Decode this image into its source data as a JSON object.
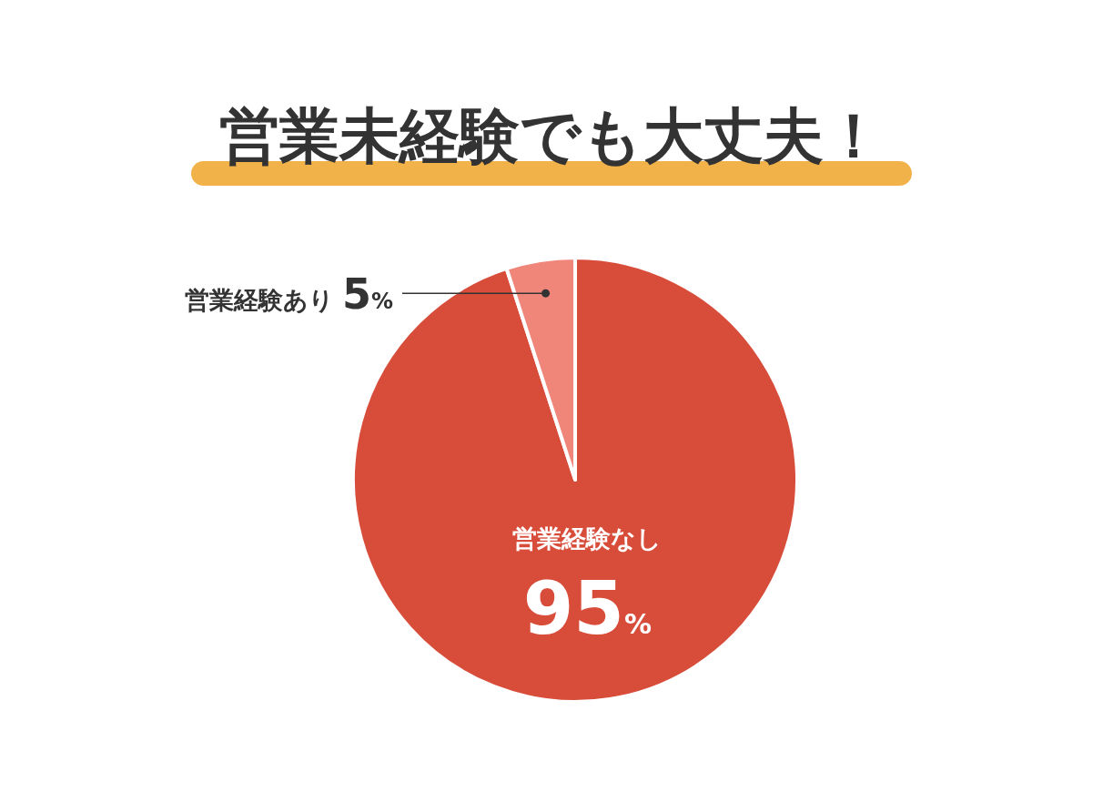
{
  "chart_data": {
    "type": "pie",
    "title": "営業未経験でも大丈夫！",
    "categories": [
      "営業経験なし",
      "営業経験あり"
    ],
    "values": [
      95,
      5
    ],
    "colors": [
      "#d84c3a",
      "#f0857a"
    ],
    "value_labels": [
      "95%",
      "5%"
    ]
  }
}
